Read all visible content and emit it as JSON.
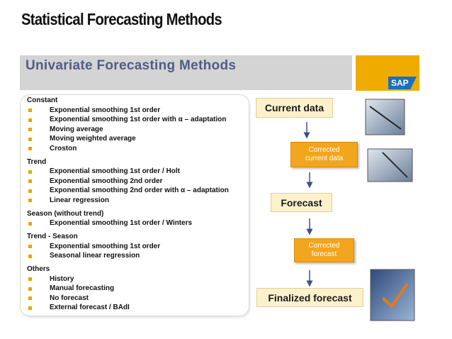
{
  "title": "Statistical Forecasting Methods",
  "banner": {
    "title": "Univariate Forecasting Methods",
    "logo": "SAP"
  },
  "groups": [
    {
      "name": "Constant",
      "items": [
        "Exponential smoothing 1st order",
        "Exponential smoothing 1st order with α – adaptation",
        "Moving average",
        "Moving weighted average",
        "Croston"
      ]
    },
    {
      "name": "Trend",
      "items": [
        "Exponential smoothing 1st order / Holt",
        "Exponential smoothing 2nd order",
        "Exponential smoothing 2nd order with α – adaptation",
        "Linear regression"
      ]
    },
    {
      "name": "Season (without trend)",
      "items": [
        "Exponential smoothing 1st order / Winters"
      ]
    },
    {
      "name": "Trend - Season",
      "items": [
        "Exponential smoothing 1st order",
        "Seasonal linear regression"
      ]
    },
    {
      "name": "Others",
      "items": [
        "History",
        "Manual forecasting",
        "No forecast",
        "External forecast / BAdI"
      ]
    }
  ],
  "flow": [
    "Current data",
    "Corrected current data",
    "Forecast",
    "Corrected forecast",
    "Finalized forecast"
  ]
}
